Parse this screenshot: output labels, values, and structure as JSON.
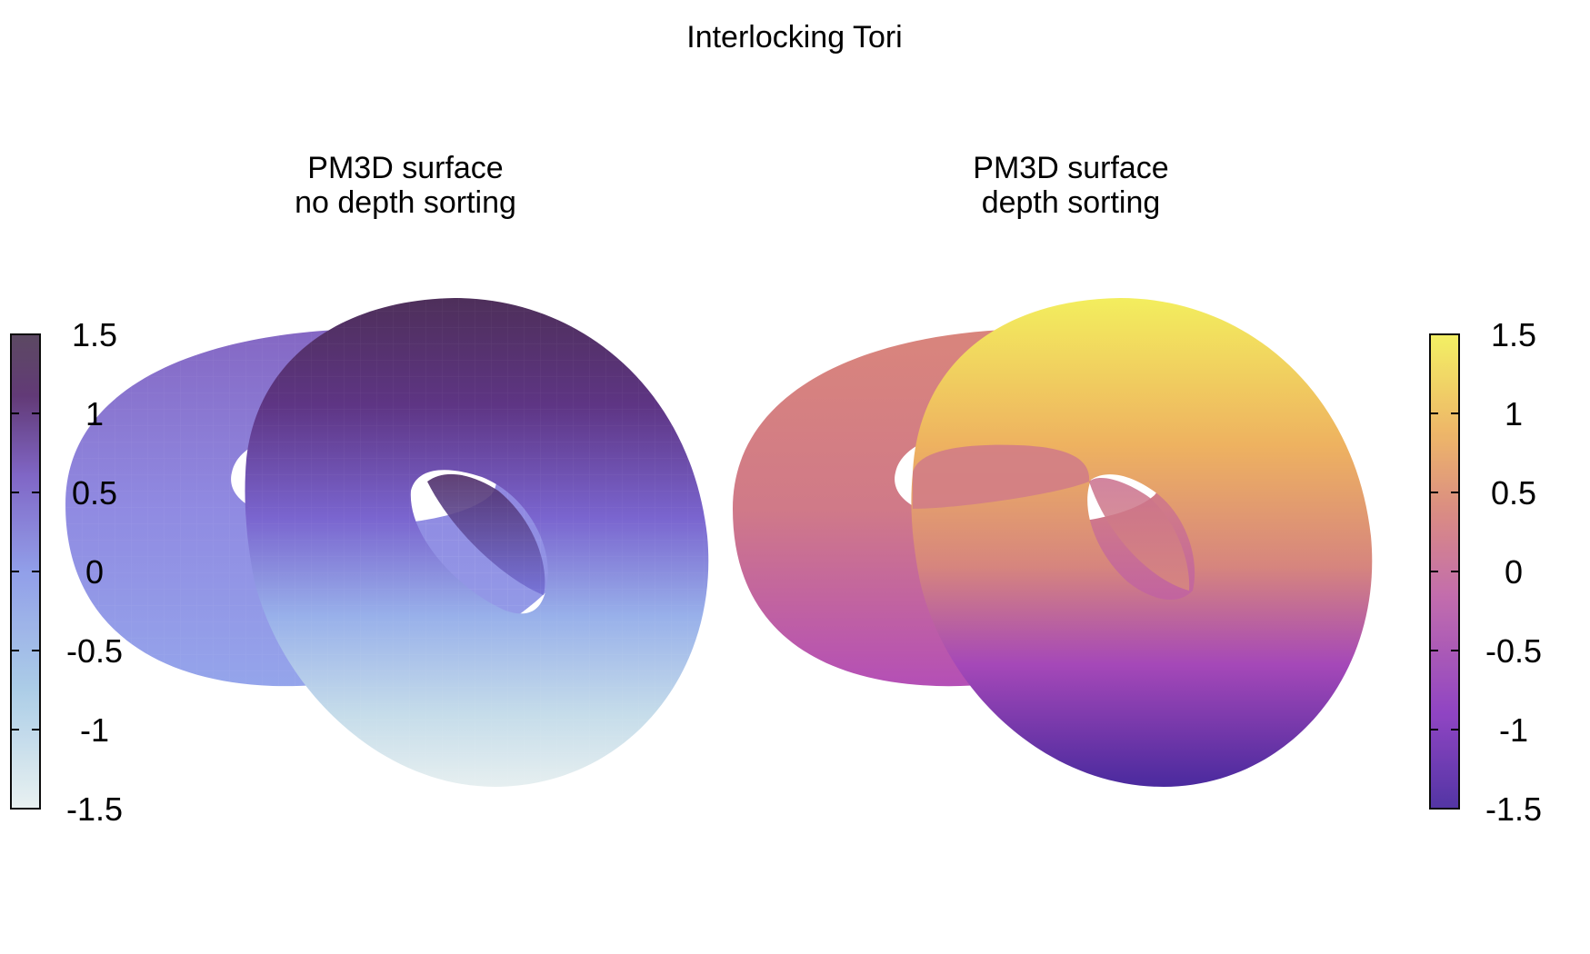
{
  "title": "Interlocking Tori",
  "colorbar_ticks": [
    "1.5",
    "1",
    "0.5",
    "0",
    "-0.5",
    "-1",
    "-1.5"
  ],
  "chart_data": [
    {
      "type": "surface",
      "subtitle_line1": "PM3D surface",
      "subtitle_line2": "no depth sorting",
      "cbrange": [
        -1.5,
        1.5
      ],
      "cbticks": [
        1.5,
        1,
        0.5,
        0,
        -0.5,
        -1,
        -1.5
      ],
      "colorbar_side": "left",
      "palette": [
        "#e8f1f1",
        "#a8cbe6",
        "#8c9ae8",
        "#7a5fc4",
        "#5a3070",
        "#4e3a55"
      ]
    },
    {
      "type": "surface",
      "subtitle_line1": "PM3D surface",
      "subtitle_line2": "depth sorting",
      "cbrange": [
        -1.5,
        1.5
      ],
      "cbticks": [
        1.5,
        1,
        0.5,
        0,
        -0.5,
        -1,
        -1.5
      ],
      "colorbar_side": "right",
      "palette": [
        "#4a2ba0",
        "#8a3bc0",
        "#c066a8",
        "#d8857e",
        "#eeb560",
        "#f3f05c"
      ]
    }
  ]
}
